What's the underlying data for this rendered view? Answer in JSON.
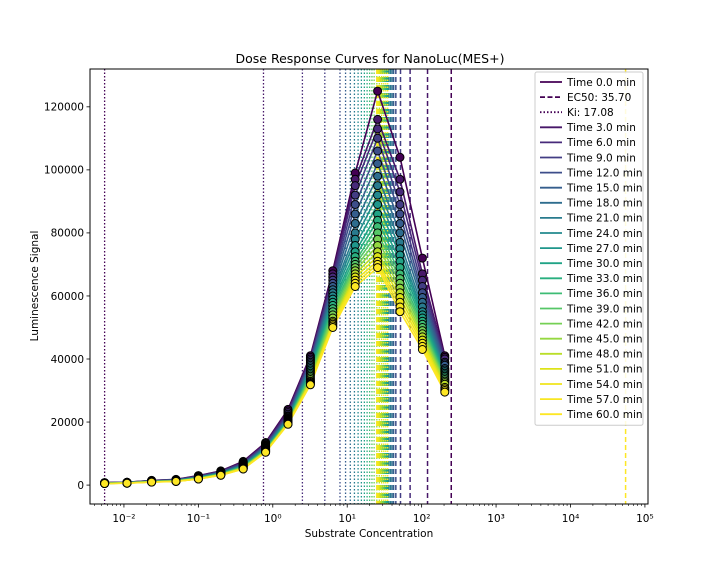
{
  "chart_data": {
    "type": "line",
    "title": "Dose Response Curves for NanoLuc(MES+)",
    "xlabel": "Substrate Concentration",
    "ylabel": "Luminescence Signal",
    "xscale": "log",
    "xlim": [
      0.0035,
      110000
    ],
    "ylim": [
      -6000,
      132000
    ],
    "legend_position": "top-right",
    "x_ticks": [
      {
        "value": 0.01,
        "label": "10⁻²"
      },
      {
        "value": 0.1,
        "label": "10⁻¹"
      },
      {
        "value": 1,
        "label": "10⁰"
      },
      {
        "value": 10,
        "label": "10¹"
      },
      {
        "value": 100,
        "label": "10²"
      },
      {
        "value": 1000,
        "label": "10³"
      },
      {
        "value": 10000,
        "label": "10⁴"
      },
      {
        "value": 100000,
        "label": "10⁵"
      }
    ],
    "y_ticks": [
      0,
      20000,
      40000,
      60000,
      80000,
      100000,
      120000
    ],
    "x": [
      0.0055,
      0.011,
      0.0235,
      0.05,
      0.1,
      0.2,
      0.4,
      0.8,
      1.6,
      3.2,
      6.4,
      12.8,
      25.6,
      51.2,
      102.4,
      204.8
    ],
    "series": [
      {
        "name": "Time 0.0 min",
        "color": "#440154",
        "values": [
          800,
          900,
          1500,
          1800,
          3000,
          4500,
          7500,
          13500,
          24000,
          41000,
          68000,
          99000,
          125000,
          104000,
          72000,
          41000
        ]
      },
      {
        "name": "Time 3.0 min",
        "color": "#481769",
        "values": [
          750,
          880,
          1450,
          1750,
          2900,
          4400,
          7300,
          13200,
          23500,
          40500,
          67000,
          97000,
          116000,
          97000,
          67000,
          40500
        ]
      },
      {
        "name": "Time 6.0 min",
        "color": "#472a7a",
        "values": [
          720,
          860,
          1400,
          1700,
          2800,
          4300,
          7100,
          13000,
          23000,
          40000,
          66000,
          95000,
          113000,
          93000,
          65000,
          40000
        ]
      },
      {
        "name": "Time 9.0 min",
        "color": "#433d84",
        "values": [
          700,
          840,
          1350,
          1650,
          2700,
          4200,
          6900,
          12700,
          22500,
          39500,
          65000,
          92000,
          110000,
          89000,
          63000,
          39000
        ]
      },
      {
        "name": "Time 12.0 min",
        "color": "#3d4e8a",
        "values": [
          680,
          820,
          1300,
          1600,
          2600,
          4100,
          6700,
          12500,
          22000,
          39000,
          64000,
          89000,
          106000,
          86000,
          61000,
          38500
        ]
      },
      {
        "name": "Time 15.0 min",
        "color": "#355e8d",
        "values": [
          660,
          800,
          1270,
          1560,
          2550,
          4000,
          6500,
          12300,
          21800,
          38500,
          63000,
          86000,
          102000,
          83000,
          59500,
          38000
        ]
      },
      {
        "name": "Time 18.0 min",
        "color": "#2e6d8e",
        "values": [
          640,
          780,
          1240,
          1520,
          2500,
          3900,
          6400,
          12100,
          21500,
          38000,
          62000,
          83000,
          98000,
          80000,
          58000,
          37000
        ]
      },
      {
        "name": "Time 21.0 min",
        "color": "#297b8e",
        "values": [
          620,
          760,
          1210,
          1480,
          2450,
          3800,
          6300,
          11900,
          21200,
          37500,
          61000,
          80000,
          95000,
          77000,
          56500,
          36500
        ]
      },
      {
        "name": "Time 24.0 min",
        "color": "#23898e",
        "values": [
          600,
          740,
          1180,
          1440,
          2400,
          3700,
          6200,
          11700,
          21000,
          37000,
          60000,
          78000,
          92000,
          75000,
          55000,
          36000
        ]
      },
      {
        "name": "Time 27.0 min",
        "color": "#1f968b",
        "values": [
          590,
          720,
          1150,
          1400,
          2350,
          3650,
          6100,
          11500,
          20800,
          36500,
          59000,
          76000,
          89000,
          73000,
          54000,
          35500
        ]
      },
      {
        "name": "Time 30.0 min",
        "color": "#20a386",
        "values": [
          580,
          700,
          1120,
          1370,
          2300,
          3600,
          6000,
          11300,
          20600,
          36000,
          58000,
          74000,
          86000,
          71000,
          53000,
          35000
        ]
      },
      {
        "name": "Time 33.0 min",
        "color": "#29af7f",
        "values": [
          570,
          690,
          1100,
          1340,
          2250,
          3550,
          5900,
          11200,
          20400,
          35500,
          57000,
          72500,
          84000,
          69000,
          52000,
          34500
        ]
      },
      {
        "name": "Time 36.0 min",
        "color": "#3dbc74",
        "values": [
          560,
          680,
          1080,
          1310,
          2200,
          3500,
          5800,
          11100,
          20200,
          35000,
          56000,
          71000,
          82000,
          67000,
          51000,
          34000
        ]
      },
      {
        "name": "Time 39.0 min",
        "color": "#56c667",
        "values": [
          550,
          670,
          1060,
          1290,
          2150,
          3450,
          5700,
          11000,
          20000,
          34500,
          55000,
          70000,
          80000,
          65500,
          50000,
          33500
        ]
      },
      {
        "name": "Time 42.0 min",
        "color": "#75d054",
        "values": [
          540,
          660,
          1040,
          1270,
          2100,
          3400,
          5600,
          10900,
          19900,
          34000,
          54000,
          69000,
          78000,
          64000,
          49000,
          33000
        ]
      },
      {
        "name": "Time 45.0 min",
        "color": "#95d840",
        "values": [
          530,
          650,
          1020,
          1250,
          2050,
          3350,
          5500,
          10800,
          19800,
          33500,
          53000,
          68000,
          76000,
          62500,
          48000,
          32500
        ]
      },
      {
        "name": "Time 48.0 min",
        "color": "#bade28",
        "values": [
          520,
          640,
          1000,
          1230,
          2000,
          3300,
          5400,
          10700,
          19700,
          33000,
          52000,
          67000,
          74000,
          61000,
          47000,
          32000
        ]
      },
      {
        "name": "Time 51.0 min",
        "color": "#dde318",
        "values": [
          510,
          630,
          990,
          1210,
          1980,
          3250,
          5300,
          10600,
          19600,
          32700,
          51500,
          66000,
          72500,
          59500,
          46000,
          31000
        ]
      },
      {
        "name": "Time 54.0 min",
        "color": "#f0e51b",
        "values": [
          500,
          620,
          980,
          1190,
          1960,
          3200,
          5200,
          10500,
          19500,
          32400,
          51000,
          65000,
          71000,
          58000,
          45000,
          30500
        ]
      },
      {
        "name": "Time 57.0 min",
        "color": "#f8e621",
        "values": [
          495,
          610,
          970,
          1180,
          1940,
          3150,
          5150,
          10450,
          19400,
          32100,
          50500,
          64000,
          70000,
          56500,
          44000,
          30000
        ]
      },
      {
        "name": "Time 60.0 min",
        "color": "#fde725",
        "values": [
          490,
          600,
          960,
          1170,
          1920,
          3100,
          5100,
          10400,
          19300,
          31800,
          50000,
          63000,
          69000,
          55000,
          43000,
          29500
        ]
      }
    ],
    "annotation_lines": {
      "ec50": [
        250,
        120,
        70,
        52,
        45,
        42,
        40,
        38,
        36,
        35,
        34,
        33,
        32,
        31,
        30,
        29,
        28,
        27,
        26,
        25,
        55000
      ],
      "ki": [
        0.0055,
        0.75,
        2.5,
        5,
        8,
        9.5,
        11,
        12.5,
        14,
        15.5,
        17,
        18.5,
        20,
        21.5,
        23,
        25,
        27,
        29,
        31,
        33,
        35
      ]
    },
    "legend": [
      {
        "label": "Time 0.0 min",
        "color": "#440154",
        "style": "solid"
      },
      {
        "label": "EC50: 35.70",
        "color": "#440154",
        "style": "dashed"
      },
      {
        "label": "Ki: 17.08",
        "color": "#440154",
        "style": "dotted"
      },
      {
        "label": "Time 3.0 min",
        "color": "#481769",
        "style": "solid"
      },
      {
        "label": "Time 6.0 min",
        "color": "#472a7a",
        "style": "solid"
      },
      {
        "label": "Time 9.0 min",
        "color": "#433d84",
        "style": "solid"
      },
      {
        "label": "Time 12.0 min",
        "color": "#3d4e8a",
        "style": "solid"
      },
      {
        "label": "Time 15.0 min",
        "color": "#355e8d",
        "style": "solid"
      },
      {
        "label": "Time 18.0 min",
        "color": "#2e6d8e",
        "style": "solid"
      },
      {
        "label": "Time 21.0 min",
        "color": "#297b8e",
        "style": "solid"
      },
      {
        "label": "Time 24.0 min",
        "color": "#23898e",
        "style": "solid"
      },
      {
        "label": "Time 27.0 min",
        "color": "#1f968b",
        "style": "solid"
      },
      {
        "label": "Time 30.0 min",
        "color": "#20a386",
        "style": "solid"
      },
      {
        "label": "Time 33.0 min",
        "color": "#29af7f",
        "style": "solid"
      },
      {
        "label": "Time 36.0 min",
        "color": "#3dbc74",
        "style": "solid"
      },
      {
        "label": "Time 39.0 min",
        "color": "#56c667",
        "style": "solid"
      },
      {
        "label": "Time 42.0 min",
        "color": "#75d054",
        "style": "solid"
      },
      {
        "label": "Time 45.0 min",
        "color": "#95d840",
        "style": "solid"
      },
      {
        "label": "Time 48.0 min",
        "color": "#bade28",
        "style": "solid"
      },
      {
        "label": "Time 51.0 min",
        "color": "#dde318",
        "style": "solid"
      },
      {
        "label": "Time 54.0 min",
        "color": "#f0e51b",
        "style": "solid"
      },
      {
        "label": "Time 57.0 min",
        "color": "#f8e621",
        "style": "solid"
      },
      {
        "label": "Time 60.0 min",
        "color": "#fde725",
        "style": "solid"
      }
    ]
  }
}
